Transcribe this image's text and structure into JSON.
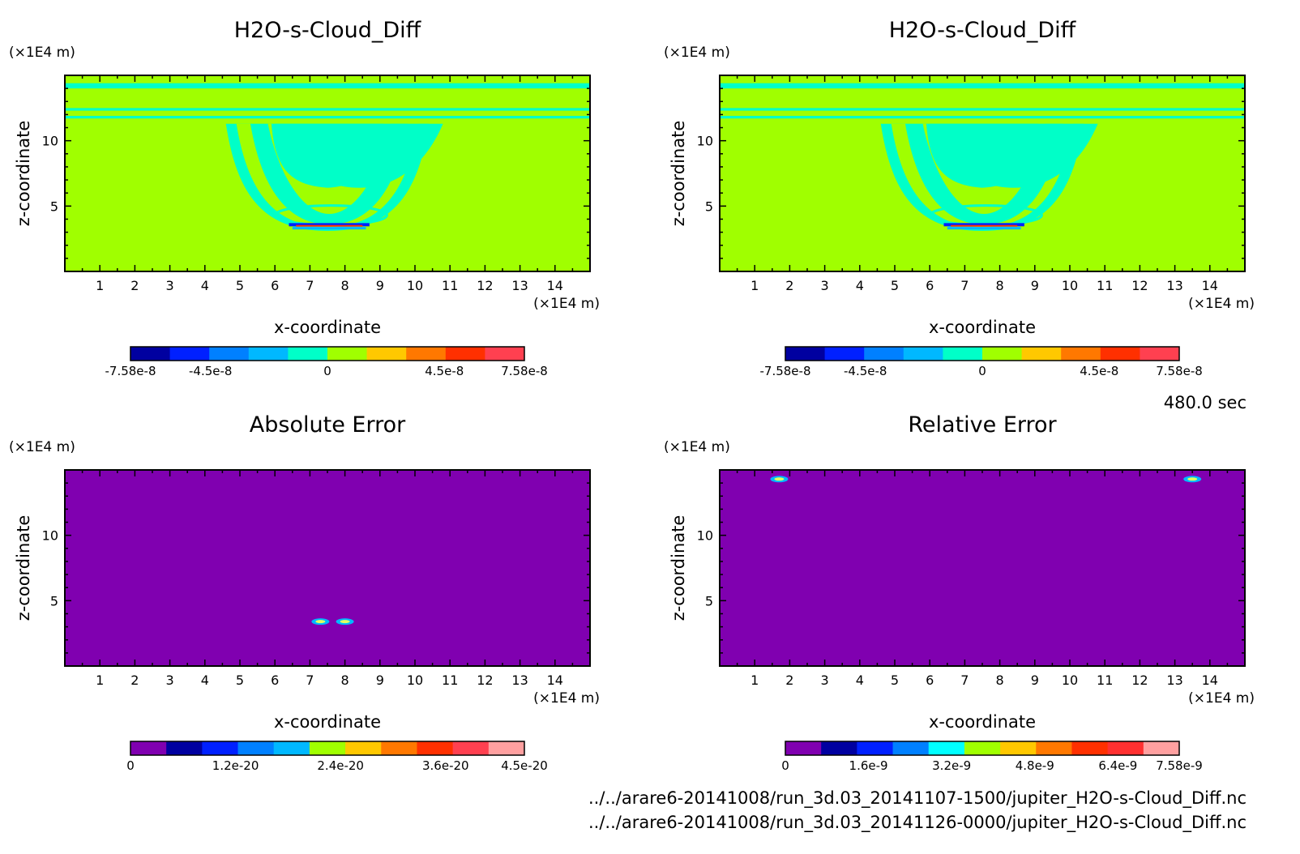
{
  "time_label": "480.0 sec",
  "footer": {
    "file1": "../../arare6-20141008/run_3d.03_20141107-1500/jupiter_H2O-s-Cloud_Diff.nc",
    "file2": "../../arare6-20141008/run_3d.03_20141126-0000/jupiter_H2O-s-Cloud_Diff.nc"
  },
  "chart_data": [
    {
      "type": "heatmap",
      "title": "H2O-s-Cloud_Diff",
      "xlabel": "x-coordinate",
      "ylabel": "z-coordinate",
      "x_unit": "(×1E4 m)",
      "y_unit": "(×1E4 m)",
      "xlim": [
        0,
        15
      ],
      "ylim": [
        0,
        15
      ],
      "xticks": [
        1,
        2,
        3,
        4,
        5,
        6,
        7,
        8,
        9,
        10,
        11,
        12,
        13,
        14
      ],
      "yticks": [
        5,
        10
      ],
      "colorbar": {
        "colors": [
          "#0000a0",
          "#0020ff",
          "#0080ff",
          "#00b8ff",
          "#00ffc8",
          "#a0ff00",
          "#ffc800",
          "#ff7800",
          "#ff3000",
          "#ff4050"
        ],
        "tick_labels": [
          "-7.58e-8",
          "-4.5e-8",
          "0",
          "4.5e-8",
          "7.58e-8"
        ],
        "tick_values": [
          -7.58e-08,
          -4.5e-08,
          0,
          4.5e-08,
          7.58e-08
        ],
        "range": [
          -7.58e-08,
          7.58e-08
        ]
      },
      "background_color": "#a0ff00",
      "pattern": "cloud-bowl"
    },
    {
      "type": "heatmap",
      "title": "H2O-s-Cloud_Diff",
      "xlabel": "x-coordinate",
      "ylabel": "z-coordinate",
      "x_unit": "(×1E4 m)",
      "y_unit": "(×1E4 m)",
      "xlim": [
        0,
        15
      ],
      "ylim": [
        0,
        15
      ],
      "xticks": [
        1,
        2,
        3,
        4,
        5,
        6,
        7,
        8,
        9,
        10,
        11,
        12,
        13,
        14
      ],
      "yticks": [
        5,
        10
      ],
      "colorbar": {
        "colors": [
          "#0000a0",
          "#0020ff",
          "#0080ff",
          "#00b8ff",
          "#00ffc8",
          "#a0ff00",
          "#ffc800",
          "#ff7800",
          "#ff3000",
          "#ff4050"
        ],
        "tick_labels": [
          "-7.58e-8",
          "-4.5e-8",
          "0",
          "4.5e-8",
          "7.58e-8"
        ],
        "tick_values": [
          -7.58e-08,
          -4.5e-08,
          0,
          4.5e-08,
          7.58e-08
        ],
        "range": [
          -7.58e-08,
          7.58e-08
        ]
      },
      "background_color": "#a0ff00",
      "pattern": "cloud-bowl"
    },
    {
      "type": "heatmap",
      "title": "Absolute Error",
      "xlabel": "x-coordinate",
      "ylabel": "z-coordinate",
      "x_unit": "(×1E4 m)",
      "y_unit": "(×1E4 m)",
      "xlim": [
        0,
        15
      ],
      "ylim": [
        0,
        15
      ],
      "xticks": [
        1,
        2,
        3,
        4,
        5,
        6,
        7,
        8,
        9,
        10,
        11,
        12,
        13,
        14
      ],
      "yticks": [
        5,
        10
      ],
      "colorbar": {
        "colors": [
          "#8000b0",
          "#0000a0",
          "#0020ff",
          "#0080ff",
          "#00b8ff",
          "#a0ff00",
          "#ffc800",
          "#ff7800",
          "#ff3000",
          "#ff4050",
          "#ffa0a0"
        ],
        "tick_labels": [
          "0",
          "1.2e-20",
          "2.4e-20",
          "3.6e-20",
          "4.5e-20"
        ],
        "tick_values": [
          0,
          1.2e-20,
          2.4e-20,
          3.6e-20,
          4.5e-20
        ],
        "range": [
          0,
          4.5e-20
        ]
      },
      "background_color": "#8000b0",
      "spots": [
        {
          "x": 7.3,
          "z": 3.4
        },
        {
          "x": 8.0,
          "z": 3.4
        }
      ]
    },
    {
      "type": "heatmap",
      "title": "Relative Error",
      "xlabel": "x-coordinate",
      "ylabel": "z-coordinate",
      "x_unit": "(×1E4 m)",
      "y_unit": "(×1E4 m)",
      "xlim": [
        0,
        15
      ],
      "ylim": [
        0,
        15
      ],
      "xticks": [
        1,
        2,
        3,
        4,
        5,
        6,
        7,
        8,
        9,
        10,
        11,
        12,
        13,
        14
      ],
      "yticks": [
        5,
        10
      ],
      "colorbar": {
        "colors": [
          "#8000b0",
          "#0000a0",
          "#0020ff",
          "#0080ff",
          "#00ffff",
          "#a0ff00",
          "#ffc800",
          "#ff7800",
          "#ff3000",
          "#ff3030",
          "#ffa0a0"
        ],
        "tick_labels": [
          "0",
          "1.6e-9",
          "3.2e-9",
          "4.8e-9",
          "6.4e-9",
          "7.58e-9"
        ],
        "tick_values": [
          0,
          1.6e-09,
          3.2e-09,
          4.8e-09,
          6.4e-09,
          7.58e-09
        ],
        "range": [
          0,
          7.58e-09
        ]
      },
      "background_color": "#8000b0",
      "spots": [
        {
          "x": 1.7,
          "z": 14.3
        },
        {
          "x": 13.5,
          "z": 14.3
        }
      ]
    }
  ]
}
